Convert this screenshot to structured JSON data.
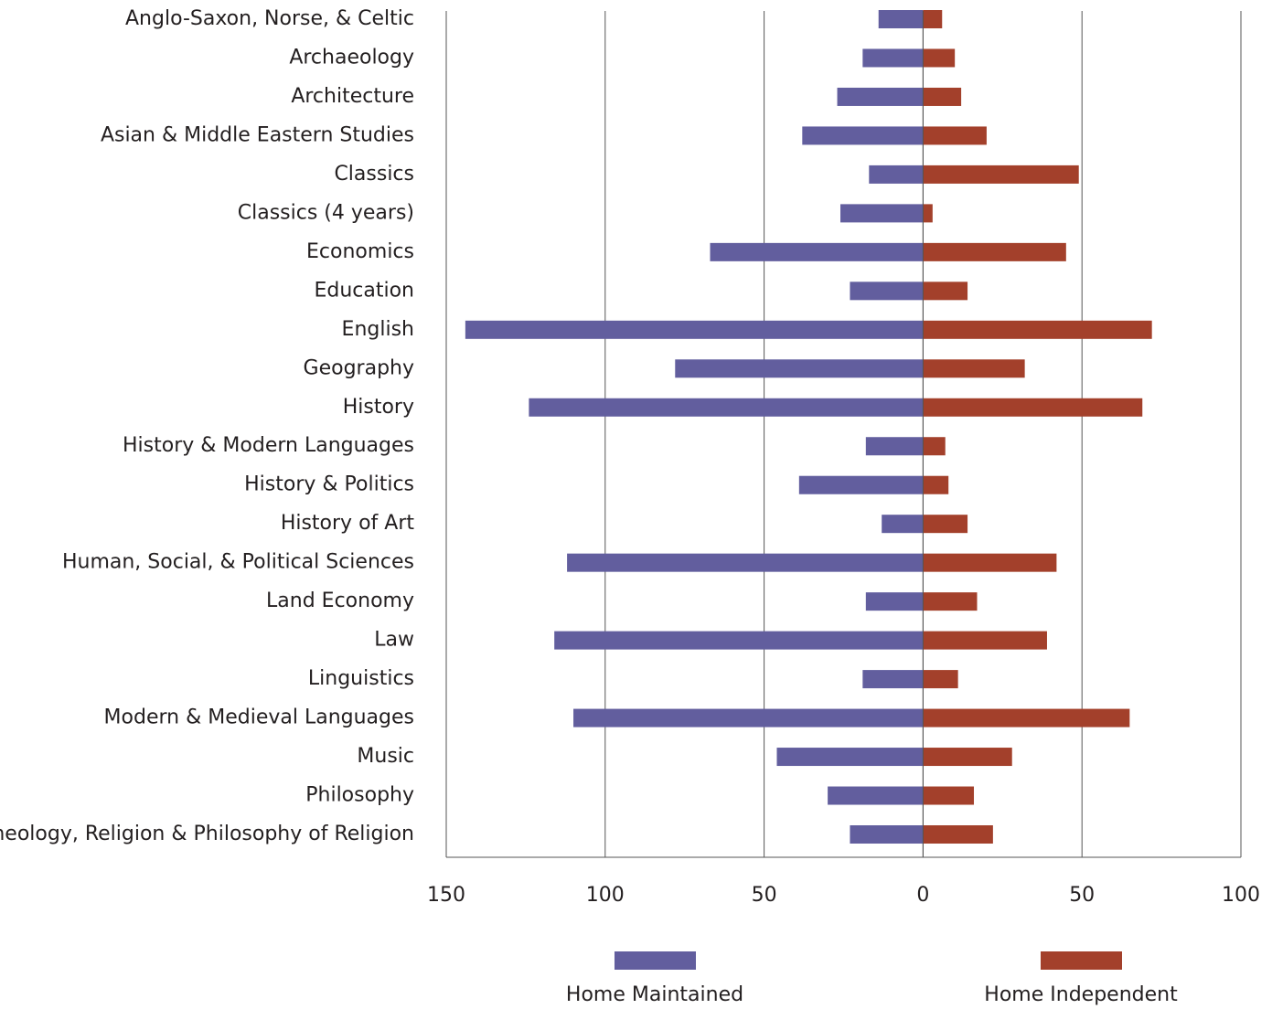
{
  "chart_data": {
    "type": "bar",
    "orientation": "horizontal",
    "categories": [
      "Anglo-Saxon, Norse, & Celtic",
      "Archaeology",
      "Architecture",
      "Asian & Middle Eastern Studies",
      "Classics",
      "Classics (4 years)",
      "Economics",
      "Education",
      "English",
      "Geography",
      "History",
      "History & Modern Languages",
      "History & Politics",
      "History of Art",
      "Human, Social, & Political Sciences",
      "Land Economy",
      "Law",
      "Linguistics",
      "Modern & Medieval Languages",
      "Music",
      "Philosophy",
      "Theology, Religion & Philosophy of Religion"
    ],
    "series": [
      {
        "name": "Home Maintained",
        "color": "#625e9e",
        "values": [
          -14,
          -19,
          -27,
          -38,
          -17,
          -26,
          -67,
          -23,
          -144,
          -78,
          -124,
          -18,
          -39,
          -13,
          -112,
          -18,
          -116,
          -19,
          -110,
          -46,
          -30,
          -23
        ]
      },
      {
        "name": "Home Independent",
        "color": "#a3402b",
        "values": [
          6,
          10,
          12,
          20,
          49,
          3,
          45,
          14,
          72,
          32,
          69,
          7,
          8,
          14,
          42,
          17,
          39,
          11,
          65,
          28,
          16,
          22
        ]
      }
    ],
    "xlim": [
      -150,
      100
    ],
    "xticks": [
      {
        "value": -150,
        "label": "150"
      },
      {
        "value": -100,
        "label": "100"
      },
      {
        "value": -50,
        "label": "50"
      },
      0,
      50,
      100
    ],
    "grid": true,
    "legend": "bottom"
  }
}
